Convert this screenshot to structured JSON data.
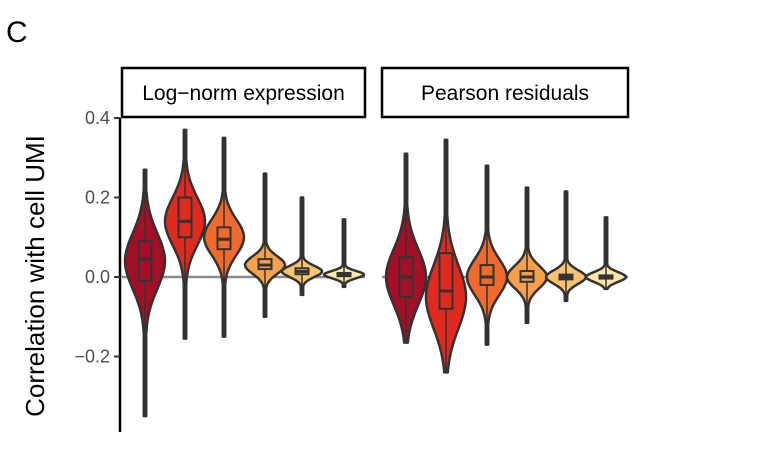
{
  "panel_letter": "C",
  "chart_data": {
    "type": "violin",
    "ylabel": "Correlation with cell UMI",
    "xlabel": "",
    "ylim": [
      -0.39,
      0.4
    ],
    "yticks": [
      0.4,
      0.2,
      0.0,
      -0.2
    ],
    "ytick_labels": [
      "0.4",
      "0.2",
      "0.0",
      "−0.2"
    ],
    "reference_line": 0.0,
    "grid": false,
    "legend": "none",
    "colors": [
      "#a50f26",
      "#e02a1f",
      "#f06a2d",
      "#f6a04a",
      "#f8c36f",
      "#fbe6a8"
    ],
    "facets": [
      {
        "title": "Log−norm expression",
        "groups": [
          {
            "min": -0.35,
            "max": 0.27,
            "q1": -0.01,
            "median": 0.045,
            "q3": 0.09,
            "mode": 0.04,
            "spread": 0.07
          },
          {
            "min": -0.155,
            "max": 0.37,
            "q1": 0.1,
            "median": 0.14,
            "q3": 0.2,
            "mode": 0.14,
            "spread": 0.06
          },
          {
            "min": -0.15,
            "max": 0.35,
            "q1": 0.07,
            "median": 0.095,
            "q3": 0.125,
            "mode": 0.1,
            "spread": 0.045
          },
          {
            "min": -0.1,
            "max": 0.26,
            "q1": 0.02,
            "median": 0.03,
            "q3": 0.045,
            "mode": 0.03,
            "spread": 0.022
          },
          {
            "min": -0.045,
            "max": 0.2,
            "q1": 0.007,
            "median": 0.014,
            "q3": 0.022,
            "mode": 0.014,
            "spread": 0.014
          },
          {
            "min": -0.025,
            "max": 0.145,
            "q1": 0.002,
            "median": 0.006,
            "q3": 0.01,
            "mode": 0.006,
            "spread": 0.009
          }
        ]
      },
      {
        "title": "Pearson residuals",
        "groups": [
          {
            "min": -0.165,
            "max": 0.31,
            "q1": -0.05,
            "median": 0.0,
            "q3": 0.05,
            "mode": 0.0,
            "spread": 0.07
          },
          {
            "min": -0.24,
            "max": 0.345,
            "q1": -0.08,
            "median": -0.035,
            "q3": 0.06,
            "mode": -0.05,
            "spread": 0.08
          },
          {
            "min": -0.17,
            "max": 0.28,
            "q1": -0.02,
            "median": 0.0,
            "q3": 0.03,
            "mode": 0.0,
            "spread": 0.045
          },
          {
            "min": -0.115,
            "max": 0.225,
            "q1": -0.012,
            "median": 0.0,
            "q3": 0.015,
            "mode": 0.0,
            "spread": 0.028
          },
          {
            "min": -0.06,
            "max": 0.215,
            "q1": -0.006,
            "median": 0.0,
            "q3": 0.006,
            "mode": 0.0,
            "spread": 0.017
          },
          {
            "min": -0.03,
            "max": 0.15,
            "q1": -0.004,
            "median": 0.0,
            "q3": 0.004,
            "mode": 0.0,
            "spread": 0.012
          }
        ]
      }
    ]
  }
}
